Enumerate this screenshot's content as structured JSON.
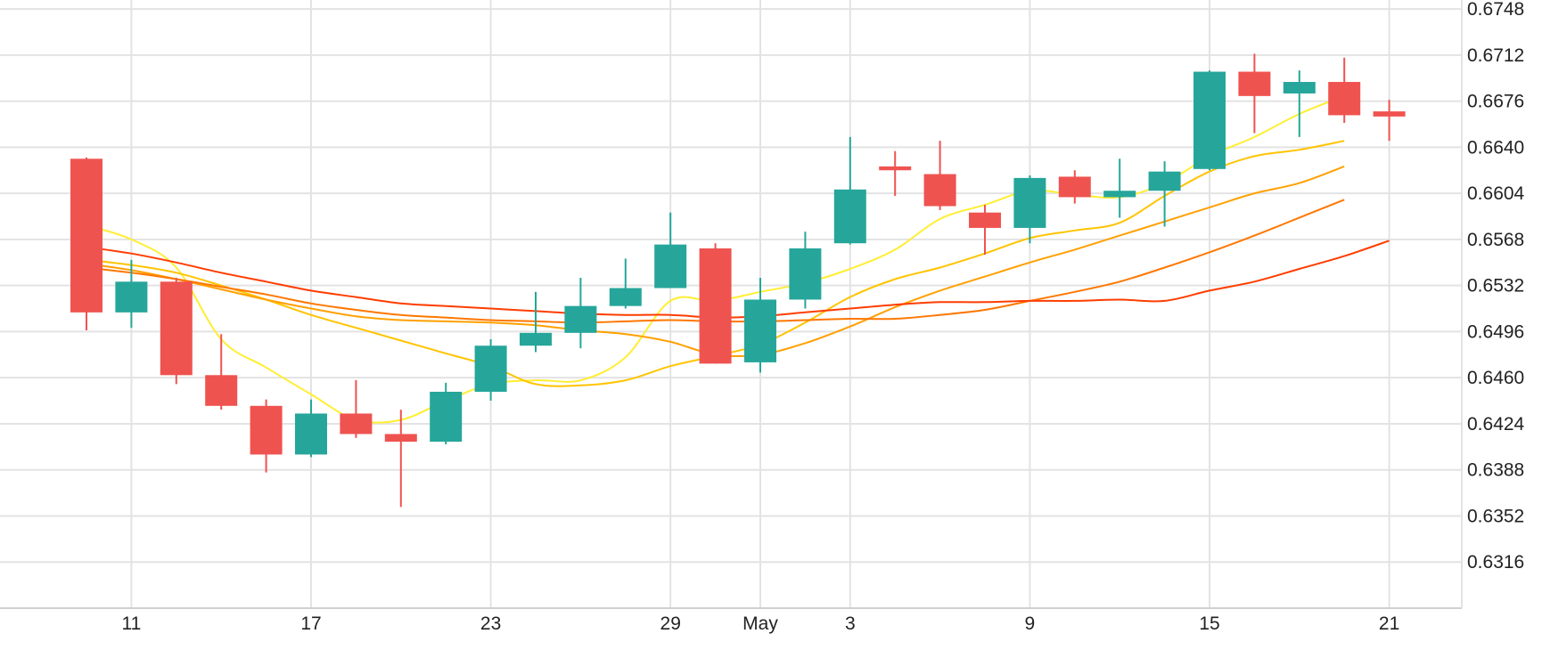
{
  "chart_data": {
    "type": "candlestick",
    "x_tick_labels": [
      "11",
      "17",
      "23",
      "29",
      "May",
      "3",
      "9",
      "15",
      "21"
    ],
    "y_tick_labels": [
      "0.6316",
      "0.6352",
      "0.6388",
      "0.6424",
      "0.6460",
      "0.6496",
      "0.6532",
      "0.6568",
      "0.6604",
      "0.6640",
      "0.6676",
      "0.6712",
      "0.6748"
    ],
    "ylim": [
      0.628,
      0.6755
    ],
    "grid": true,
    "y_axis_position": "right",
    "colors": {
      "up": "#26a69a",
      "down": "#ef5350"
    },
    "x_tick_index": [
      1,
      5,
      9,
      13,
      15,
      17,
      21,
      25,
      29
    ],
    "candles": [
      {
        "o": 0.6631,
        "h": 0.6632,
        "l": 0.6497,
        "c": 0.6511
      },
      {
        "o": 0.6511,
        "h": 0.6552,
        "l": 0.6499,
        "c": 0.6535
      },
      {
        "o": 0.6535,
        "h": 0.6538,
        "l": 0.6455,
        "c": 0.6462
      },
      {
        "o": 0.6462,
        "h": 0.6494,
        "l": 0.6435,
        "c": 0.6438
      },
      {
        "o": 0.6438,
        "h": 0.6443,
        "l": 0.6386,
        "c": 0.64
      },
      {
        "o": 0.64,
        "h": 0.6443,
        "l": 0.6398,
        "c": 0.6432
      },
      {
        "o": 0.6432,
        "h": 0.6458,
        "l": 0.6413,
        "c": 0.6416
      },
      {
        "o": 0.6416,
        "h": 0.6435,
        "l": 0.6359,
        "c": 0.641
      },
      {
        "o": 0.641,
        "h": 0.6456,
        "l": 0.6408,
        "c": 0.6449
      },
      {
        "o": 0.6449,
        "h": 0.649,
        "l": 0.6442,
        "c": 0.6485
      },
      {
        "o": 0.6485,
        "h": 0.6527,
        "l": 0.648,
        "c": 0.6495
      },
      {
        "o": 0.6495,
        "h": 0.6538,
        "l": 0.6483,
        "c": 0.6516
      },
      {
        "o": 0.6516,
        "h": 0.6553,
        "l": 0.6514,
        "c": 0.653
      },
      {
        "o": 0.653,
        "h": 0.6589,
        "l": 0.653,
        "c": 0.6564
      },
      {
        "o": 0.6561,
        "h": 0.6565,
        "l": 0.6471,
        "c": 0.6471
      },
      {
        "o": 0.6472,
        "h": 0.6538,
        "l": 0.6464,
        "c": 0.6521
      },
      {
        "o": 0.6521,
        "h": 0.6574,
        "l": 0.6514,
        "c": 0.6561
      },
      {
        "o": 0.6565,
        "h": 0.6648,
        "l": 0.6564,
        "c": 0.6607
      },
      {
        "o": 0.6625,
        "h": 0.6637,
        "l": 0.6602,
        "c": 0.6622
      },
      {
        "o": 0.6619,
        "h": 0.6645,
        "l": 0.6591,
        "c": 0.6594
      },
      {
        "o": 0.6589,
        "h": 0.6595,
        "l": 0.6556,
        "c": 0.6577
      },
      {
        "o": 0.6577,
        "h": 0.6618,
        "l": 0.6565,
        "c": 0.6616
      },
      {
        "o": 0.6617,
        "h": 0.6622,
        "l": 0.6596,
        "c": 0.6601
      },
      {
        "o": 0.6601,
        "h": 0.6631,
        "l": 0.6585,
        "c": 0.6606
      },
      {
        "o": 0.6606,
        "h": 0.6629,
        "l": 0.6578,
        "c": 0.6621
      },
      {
        "o": 0.6623,
        "h": 0.67,
        "l": 0.6622,
        "c": 0.6699
      },
      {
        "o": 0.6699,
        "h": 0.6713,
        "l": 0.6651,
        "c": 0.668
      },
      {
        "o": 0.6682,
        "h": 0.67,
        "l": 0.6648,
        "c": 0.6691
      },
      {
        "o": 0.6691,
        "h": 0.671,
        "l": 0.6659,
        "c": 0.6665
      },
      {
        "o": 0.6668,
        "h": 0.6677,
        "l": 0.6645,
        "c": 0.6664
      }
    ],
    "moving_averages": [
      {
        "color": "#ffee33",
        "start": 1,
        "values": [
          0.6579,
          0.6568,
          0.6546,
          0.649,
          0.6468,
          0.6447,
          0.6427,
          0.6427,
          0.6442,
          0.6455,
          0.6458,
          0.6458,
          0.6476,
          0.652,
          0.652,
          0.6527,
          0.6534,
          0.6545,
          0.656,
          0.6584,
          0.6595,
          0.6606,
          0.6603,
          0.6601,
          0.6612,
          0.6633,
          0.6648,
          0.6666,
          0.668
        ]
      },
      {
        "color": "#ffc400",
        "start": 1,
        "values": [
          0.6552,
          0.6548,
          0.6542,
          0.6532,
          0.6521,
          0.6509,
          0.6499,
          0.6489,
          0.6479,
          0.6469,
          0.6455,
          0.6454,
          0.6458,
          0.6469,
          0.6477,
          0.6486,
          0.6503,
          0.6523,
          0.6537,
          0.6546,
          0.6557,
          0.6569,
          0.6575,
          0.6581,
          0.6602,
          0.6621,
          0.6633,
          0.6638,
          0.6645
        ]
      },
      {
        "color": "#ffa000",
        "start": 1,
        "values": [
          0.6549,
          0.6544,
          0.6537,
          0.6529,
          0.6521,
          0.6514,
          0.6508,
          0.6505,
          0.6504,
          0.6503,
          0.6501,
          0.6497,
          0.6494,
          0.6488,
          0.6478,
          0.6478,
          0.6487,
          0.65,
          0.6515,
          0.6528,
          0.6539,
          0.655,
          0.656,
          0.6571,
          0.6582,
          0.6593,
          0.6604,
          0.6612,
          0.6625
        ]
      },
      {
        "color": "#ff7700",
        "start": 1,
        "values": [
          0.6546,
          0.6542,
          0.6537,
          0.6531,
          0.6525,
          0.6518,
          0.6513,
          0.6509,
          0.6507,
          0.6505,
          0.6504,
          0.6503,
          0.6504,
          0.6505,
          0.6504,
          0.6504,
          0.6505,
          0.6506,
          0.6506,
          0.6509,
          0.6513,
          0.652,
          0.6527,
          0.6535,
          0.6546,
          0.6558,
          0.6571,
          0.6585,
          0.6599
        ]
      },
      {
        "color": "#ff3d00",
        "start": 1,
        "values": [
          0.6562,
          0.6557,
          0.655,
          0.6542,
          0.6535,
          0.6528,
          0.6523,
          0.6518,
          0.6516,
          0.6514,
          0.6512,
          0.651,
          0.6509,
          0.6509,
          0.6507,
          0.6508,
          0.6511,
          0.6514,
          0.6517,
          0.6519,
          0.6519,
          0.652,
          0.652,
          0.6521,
          0.652,
          0.6528,
          0.6535,
          0.6545,
          0.6555,
          0.6567
        ]
      }
    ]
  }
}
